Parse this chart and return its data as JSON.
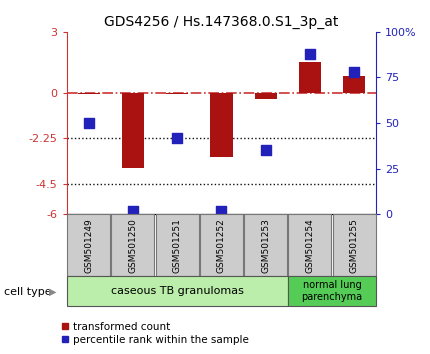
{
  "title": "GDS4256 / Hs.147368.0.S1_3p_at",
  "samples": [
    "GSM501249",
    "GSM501250",
    "GSM501251",
    "GSM501252",
    "GSM501253",
    "GSM501254",
    "GSM501255"
  ],
  "transformed_count": [
    -0.05,
    -3.7,
    -0.05,
    -3.2,
    -0.3,
    1.5,
    0.8
  ],
  "percentile_rank": [
    50,
    2,
    42,
    2,
    35,
    88,
    78
  ],
  "ylim_left": [
    -6,
    3
  ],
  "ylim_right": [
    0,
    100
  ],
  "yticks_left": [
    -6,
    -4.5,
    -2.25,
    0,
    3
  ],
  "ytick_labels_left": [
    "-6",
    "-4.5",
    "-2.25",
    "0",
    "3"
  ],
  "yticks_right": [
    0,
    25,
    50,
    75,
    100
  ],
  "ytick_labels_right": [
    "0",
    "25",
    "50",
    "75",
    "100%"
  ],
  "hlines": [
    -2.25,
    -4.5
  ],
  "bar_color": "#aa1111",
  "dot_color": "#2222bb",
  "zero_line_color": "#cc3333",
  "hline_color": "#111111",
  "group1_label": "caseous TB granulomas",
  "group1_n": 5,
  "group1_color": "#bbeeaa",
  "group2_label": "normal lung\nparenchyma",
  "group2_n": 2,
  "group2_color": "#55cc55",
  "legend_bar": "transformed count",
  "legend_dot": "percentile rank within the sample",
  "cell_type_label": "cell type",
  "bar_width": 0.5,
  "dot_size": 45,
  "left_axis_color": "#cc3333",
  "right_axis_color": "#2222bb"
}
